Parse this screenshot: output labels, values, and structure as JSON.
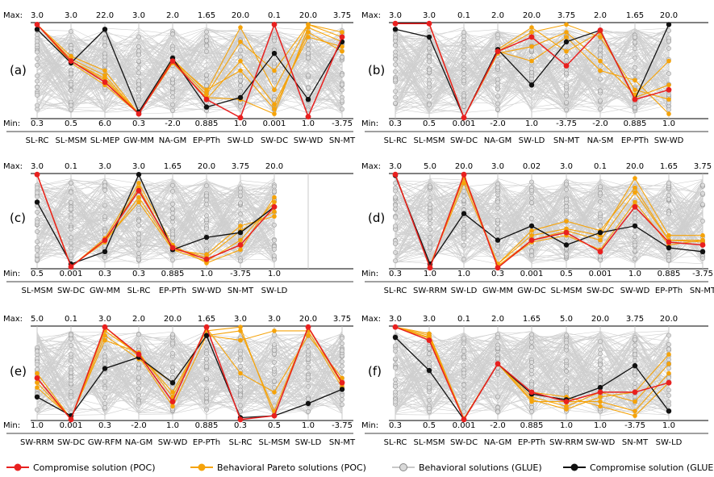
{
  "chart_data": [
    {
      "type": "parallel-coordinates",
      "panel_label": "(a)",
      "axes": [
        "SL-RC",
        "SL-MSM",
        "SL-MEP",
        "GW-MM",
        "NA-GM",
        "EP-PTh",
        "SW-LD",
        "SW-DC",
        "SW-WD",
        "SN-MT"
      ],
      "max_values": [
        "3.0",
        "3.0",
        "22.0",
        "3.0",
        "2.0",
        "1.65",
        "20.0",
        "0.1",
        "20.0",
        "3.75"
      ],
      "min_values": [
        "0.3",
        "0.5",
        "6.0",
        "0.3",
        "-2.0",
        "0.885",
        "1.0",
        "0.001",
        "1.0",
        "-3.75"
      ],
      "compromise_poc": [
        0.98,
        0.6,
        0.38,
        0.05,
        0.6,
        0.2,
        0.01,
        0.98,
        0.02,
        0.85
      ],
      "compromise_glue": [
        0.93,
        0.58,
        0.93,
        0.07,
        0.63,
        0.12,
        0.22,
        0.68,
        0.2,
        0.8
      ],
      "pareto_poc": [
        [
          0.98,
          0.6,
          0.4,
          0.05,
          0.6,
          0.25,
          0.8,
          0.5,
          0.98,
          0.85
        ],
        [
          0.98,
          0.62,
          0.45,
          0.05,
          0.6,
          0.3,
          0.5,
          0.1,
          0.9,
          0.7
        ],
        [
          0.98,
          0.58,
          0.35,
          0.05,
          0.58,
          0.22,
          0.2,
          0.05,
          0.95,
          0.8
        ],
        [
          0.98,
          0.65,
          0.5,
          0.05,
          0.62,
          0.28,
          0.95,
          0.3,
          0.98,
          0.9
        ],
        [
          0.98,
          0.6,
          0.42,
          0.05,
          0.6,
          0.2,
          0.6,
          0.15,
          0.85,
          0.75
        ]
      ]
    },
    {
      "type": "parallel-coordinates",
      "panel_label": "(b)",
      "axes": [
        "SL-RC",
        "SL-MSM",
        "SW-DC",
        "NA-GM",
        "SW-LD",
        "SN-MT",
        "NA-SM",
        "EP-PTh",
        "SW-WD"
      ],
      "max_values": [
        "3.0",
        "3.0",
        "0.1",
        "2.0",
        "20.0",
        "3.75",
        "2.0",
        "1.65",
        "20.0"
      ],
      "min_values": [
        "0.3",
        "0.5",
        "0.001",
        "-2.0",
        "1.0",
        "-3.75",
        "-2.0",
        "0.885",
        "1.0"
      ],
      "compromise_poc": [
        0.99,
        0.99,
        0.01,
        0.7,
        0.85,
        0.55,
        0.92,
        0.2,
        0.3
      ],
      "compromise_glue": [
        0.93,
        0.85,
        0.01,
        0.72,
        0.35,
        0.8,
        0.92,
        0.2,
        0.98
      ],
      "pareto_poc": [
        [
          0.99,
          0.99,
          0.01,
          0.7,
          0.9,
          0.98,
          0.85,
          0.3,
          0.2
        ],
        [
          0.99,
          0.99,
          0.01,
          0.72,
          0.95,
          0.7,
          0.9,
          0.22,
          0.35
        ],
        [
          0.99,
          0.99,
          0.01,
          0.68,
          0.75,
          0.9,
          0.6,
          0.25,
          0.6
        ],
        [
          0.99,
          0.99,
          0.01,
          0.7,
          0.6,
          0.85,
          0.5,
          0.4,
          0.05
        ]
      ]
    },
    {
      "type": "parallel-coordinates",
      "panel_label": "(c)",
      "axes": [
        "SL-MSM",
        "SW-DC",
        "GW-MM",
        "SL-RC",
        "EP-PTh",
        "SW-WD",
        "SN-MT",
        "SW-LD"
      ],
      "max_values": [
        "3.0",
        "0.1",
        "3.0",
        "3.0",
        "1.65",
        "20.0",
        "3.75",
        "20.0"
      ],
      "min_values": [
        "0.5",
        "0.001",
        "0.3",
        "0.3",
        "0.885",
        "1.0",
        "-3.75",
        "1.0"
      ],
      "compromise_poc": [
        0.99,
        0.02,
        0.3,
        0.82,
        0.22,
        0.1,
        0.25,
        0.65
      ],
      "compromise_glue": [
        0.7,
        0.05,
        0.18,
        0.99,
        0.2,
        0.33,
        0.38,
        0.65
      ],
      "pareto_poc": [
        [
          0.99,
          0.02,
          0.3,
          0.85,
          0.2,
          0.08,
          0.3,
          0.7
        ],
        [
          0.99,
          0.03,
          0.28,
          0.75,
          0.22,
          0.12,
          0.4,
          0.6
        ],
        [
          0.99,
          0.02,
          0.32,
          0.9,
          0.25,
          0.06,
          0.2,
          0.75
        ],
        [
          0.99,
          0.02,
          0.3,
          0.7,
          0.2,
          0.15,
          0.45,
          0.55
        ]
      ]
    },
    {
      "type": "parallel-coordinates",
      "panel_label": "(d)",
      "axes": [
        "SL-RC",
        "SW-RRM",
        "SW-LD",
        "GW-MM",
        "GW-DC",
        "SL-MSM",
        "SW-DC",
        "SW-WD",
        "EP-PTh",
        "SN-MT"
      ],
      "max_values": [
        "3.0",
        "5.0",
        "20.0",
        "3.0",
        "0.02",
        "3.0",
        "0.1",
        "20.0",
        "1.65",
        "3.75"
      ],
      "min_values": [
        "0.3",
        "1.0",
        "1.0",
        "0.3",
        "0.001",
        "0.5",
        "0.001",
        "1.0",
        "0.885",
        "-3.75"
      ],
      "compromise_poc": [
        0.99,
        0.01,
        0.99,
        0.01,
        0.3,
        0.38,
        0.18,
        0.65,
        0.28,
        0.25
      ],
      "compromise_glue": [
        0.98,
        0.05,
        0.58,
        0.3,
        0.45,
        0.25,
        0.38,
        0.45,
        0.22,
        0.18
      ],
      "pareto_poc": [
        [
          0.99,
          0.02,
          0.99,
          0.03,
          0.3,
          0.4,
          0.3,
          0.8,
          0.3,
          0.3
        ],
        [
          0.99,
          0.03,
          0.95,
          0.05,
          0.35,
          0.42,
          0.35,
          0.95,
          0.35,
          0.35
        ],
        [
          0.99,
          0.02,
          0.98,
          0.02,
          0.28,
          0.35,
          0.2,
          0.7,
          0.25,
          0.3
        ],
        [
          0.99,
          0.04,
          0.9,
          0.05,
          0.4,
          0.5,
          0.4,
          0.85,
          0.3,
          0.28
        ]
      ]
    },
    {
      "type": "parallel-coordinates",
      "panel_label": "(e)",
      "axes": [
        "SW-RRM",
        "SW-DC",
        "GW-RFM",
        "NA-GM",
        "SW-WD",
        "EP-PTh",
        "SL-RC",
        "SL-MSM",
        "SW-LD",
        "SN-MT"
      ],
      "max_values": [
        "5.0",
        "0.1",
        "3.0",
        "2.0",
        "20.0",
        "1.65",
        "3.0",
        "3.0",
        "20.0",
        "3.75"
      ],
      "min_values": [
        "1.0",
        "0.001",
        "0.3",
        "-2.0",
        "1.0",
        "0.885",
        "0.3",
        "0.5",
        "1.0",
        "-3.75"
      ],
      "compromise_poc": [
        0.45,
        0.01,
        0.99,
        0.7,
        0.2,
        0.99,
        0.01,
        0.05,
        0.99,
        0.4
      ],
      "compromise_glue": [
        0.25,
        0.05,
        0.55,
        0.67,
        0.4,
        0.9,
        0.03,
        0.05,
        0.18,
        0.33
      ],
      "pareto_poc": [
        [
          0.4,
          0.02,
          0.95,
          0.7,
          0.3,
          0.95,
          0.99,
          0.05,
          0.98,
          0.4
        ],
        [
          0.5,
          0.02,
          0.9,
          0.65,
          0.4,
          0.9,
          0.85,
          0.95,
          0.95,
          0.35
        ],
        [
          0.35,
          0.03,
          0.85,
          0.72,
          0.25,
          0.98,
          0.5,
          0.3,
          0.9,
          0.45
        ],
        [
          0.45,
          0.02,
          0.99,
          0.68,
          0.15,
          0.9,
          0.95,
          0.1,
          0.99,
          0.38
        ]
      ]
    },
    {
      "type": "parallel-coordinates",
      "panel_label": "(f)",
      "axes": [
        "SL-RC",
        "SL-MSM",
        "SW-DC",
        "NA-GM",
        "EP-PTh",
        "SW-RRM",
        "SW-WD",
        "SN-MT",
        "SW-LD"
      ],
      "max_values": [
        "3.0",
        "3.0",
        "0.1",
        "2.0",
        "1.65",
        "5.0",
        "20.0",
        "3.75",
        "20.0"
      ],
      "min_values": [
        "0.3",
        "0.5",
        "0.001",
        "-2.0",
        "0.885",
        "1.0",
        "1.0",
        "-3.75",
        "1.0"
      ],
      "compromise_poc": [
        0.99,
        0.85,
        0.01,
        0.6,
        0.3,
        0.2,
        0.3,
        0.3,
        0.4
      ],
      "compromise_glue": [
        0.88,
        0.53,
        0.01,
        0.6,
        0.28,
        0.22,
        0.35,
        0.58,
        0.1
      ],
      "pareto_poc": [
        [
          0.99,
          0.9,
          0.02,
          0.6,
          0.2,
          0.2,
          0.2,
          0.1,
          0.5
        ],
        [
          0.99,
          0.88,
          0.02,
          0.6,
          0.25,
          0.15,
          0.3,
          0.2,
          0.6
        ],
        [
          0.99,
          0.92,
          0.02,
          0.6,
          0.3,
          0.25,
          0.15,
          0.05,
          0.4
        ],
        [
          0.99,
          0.87,
          0.02,
          0.6,
          0.22,
          0.12,
          0.25,
          0.3,
          0.7
        ]
      ]
    }
  ],
  "max_label": "Max:",
  "min_label": "Min:",
  "legend": [
    {
      "label": "Compromise solution (POC)",
      "color": "#e8201f",
      "marker": "red-circle"
    },
    {
      "label": "Behavioral Pareto solutions (POC)",
      "color": "#f5a30a",
      "marker": "orange-circle"
    },
    {
      "label": "Behavioral solutions (GLUE)",
      "color": "#c8c8c8",
      "marker": "gray-circle"
    },
    {
      "label": "Compromise solution (GLUE)",
      "color": "#111111",
      "marker": "black-circle"
    }
  ],
  "colors": {
    "poc_compromise": "#e8201f",
    "poc_pareto": "#f5a30a",
    "glue_behavioral": "#cfcfcf",
    "glue_compromise": "#111111"
  }
}
